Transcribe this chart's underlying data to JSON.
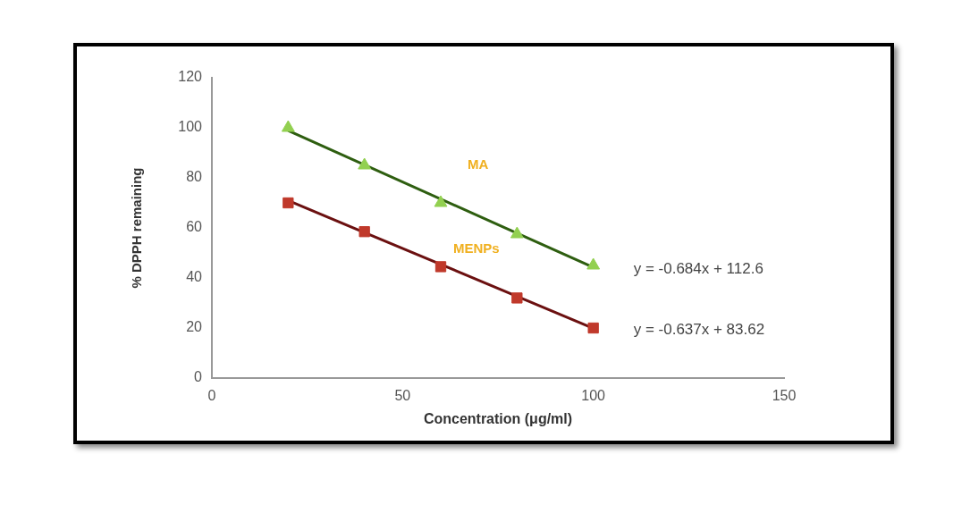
{
  "chart_data": {
    "type": "scatter",
    "xlabel": "Concentration (μg/ml)",
    "ylabel": "% DPPH remaining",
    "xlim": [
      0,
      150
    ],
    "xticks": [
      0,
      50,
      100,
      150
    ],
    "ylim": [
      0,
      120
    ],
    "yticks": [
      0,
      20,
      40,
      60,
      80,
      100,
      120
    ],
    "grid": false,
    "legend": false,
    "series": [
      {
        "name": "MA",
        "color": "#92d050",
        "marker": "triangle",
        "x": [
          20,
          40,
          60,
          80,
          100
        ],
        "values": [
          100,
          85,
          70,
          57.5,
          45
        ]
      },
      {
        "name": "MENPs",
        "color": "#c0392b",
        "marker": "square",
        "x": [
          20,
          40,
          60,
          80,
          100
        ],
        "values": [
          70,
          58.5,
          44.5,
          32,
          20
        ]
      },
      {
        "type": "line",
        "color": "#2e5e10",
        "marker": "none",
        "x": [
          20,
          100
        ],
        "values": [
          98.9,
          44.2
        ]
      },
      {
        "type": "line",
        "color": "#6b1010",
        "marker": "none",
        "x": [
          20,
          100
        ],
        "values": [
          70.9,
          19.9
        ]
      }
    ],
    "annotations": [
      {
        "text": "y = -0.684x + 112.6",
        "x": 100,
        "y": 44.2
      },
      {
        "text": "y = -0.637x + 83.62",
        "x": 100,
        "y": 19.9
      }
    ]
  }
}
